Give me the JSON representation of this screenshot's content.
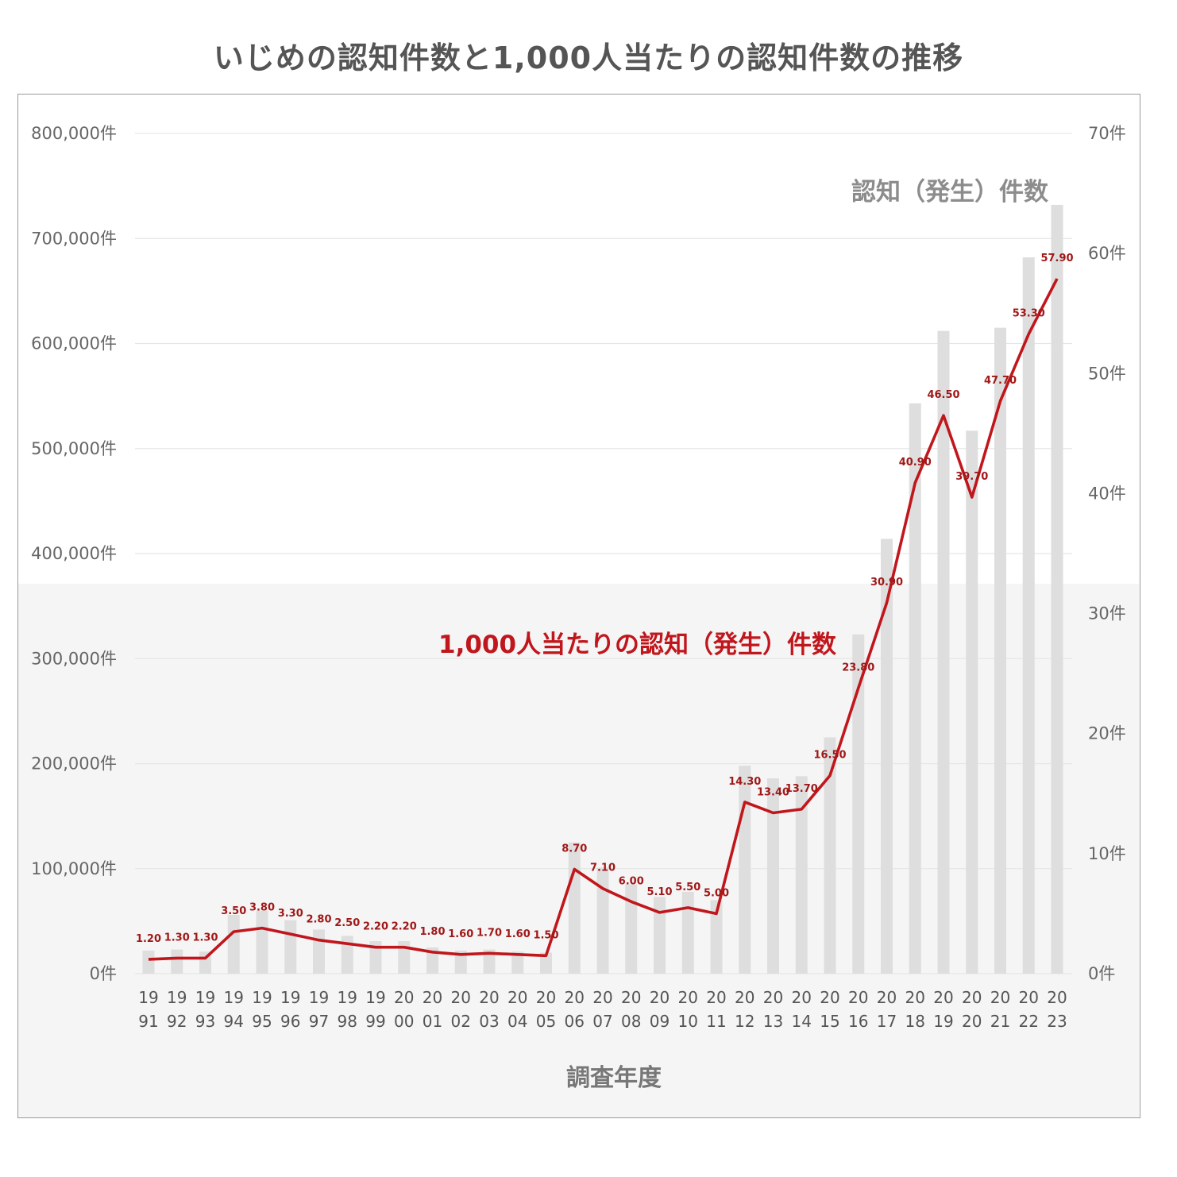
{
  "title": "いじめの認知件数と1,000人当たりの認知件数の推移",
  "chart_data": {
    "type": "bar+line",
    "title": "いじめの認知件数と1,000人当たりの認知件数の推移",
    "xlabel": "調査年度",
    "categories": [
      "1991",
      "1992",
      "1993",
      "1994",
      "1995",
      "1996",
      "1997",
      "1998",
      "1999",
      "2000",
      "2001",
      "2002",
      "2003",
      "2004",
      "2005",
      "2006",
      "2007",
      "2008",
      "2009",
      "2010",
      "2011",
      "2012",
      "2013",
      "2014",
      "2015",
      "2016",
      "2017",
      "2018",
      "2019",
      "2020",
      "2021",
      "2022",
      "2023"
    ],
    "y_left": {
      "ticks": [
        "0件",
        "100,000件",
        "200,000件",
        "300,000件",
        "400,000件",
        "500,000件",
        "600,000件",
        "700,000件",
        "800,000件"
      ],
      "ylim": [
        0,
        800000
      ]
    },
    "y_right": {
      "ticks": [
        "0件",
        "10件",
        "20件",
        "30件",
        "40件",
        "50件",
        "60件",
        "70件"
      ],
      "ylim": [
        0,
        70
      ]
    },
    "series": [
      {
        "name": "認知（発生）件数",
        "type": "bar",
        "axis": "left",
        "color": "#dedede",
        "values": [
          22000,
          23000,
          21000,
          56000,
          60000,
          51000,
          42000,
          36000,
          31000,
          31000,
          25000,
          22000,
          23000,
          21000,
          20000,
          125000,
          101000,
          85000,
          73000,
          78000,
          70000,
          198000,
          186000,
          188000,
          225000,
          323000,
          414000,
          543000,
          612000,
          517000,
          615000,
          682000,
          732000
        ]
      },
      {
        "name": "1,000人当たりの認知（発生）件数",
        "type": "line",
        "axis": "right",
        "color": "#c0161c",
        "values": [
          1.2,
          1.3,
          1.3,
          3.5,
          3.8,
          3.3,
          2.8,
          2.5,
          2.2,
          2.2,
          1.8,
          1.6,
          1.7,
          1.6,
          1.5,
          8.7,
          7.1,
          6.0,
          5.1,
          5.5,
          5.0,
          14.3,
          13.4,
          13.7,
          16.5,
          23.8,
          30.9,
          40.9,
          46.5,
          39.7,
          47.7,
          53.3,
          57.9
        ],
        "labels": [
          "1.20",
          "1.30",
          "1.30",
          "3.50",
          "3.80",
          "3.30",
          "2.80",
          "2.50",
          "2.20",
          "2.20",
          "1.80",
          "1.60",
          "1.70",
          "1.60",
          "1.50",
          "8.70",
          "7.10",
          "6.00",
          "5.10",
          "5.50",
          "5.00",
          "14.30",
          "13.40",
          "13.70",
          "16.50",
          "23.80",
          "30.90",
          "40.90",
          "46.50",
          "39.70",
          "47.70",
          "53.30",
          "57.90"
        ]
      }
    ],
    "grid": true
  }
}
